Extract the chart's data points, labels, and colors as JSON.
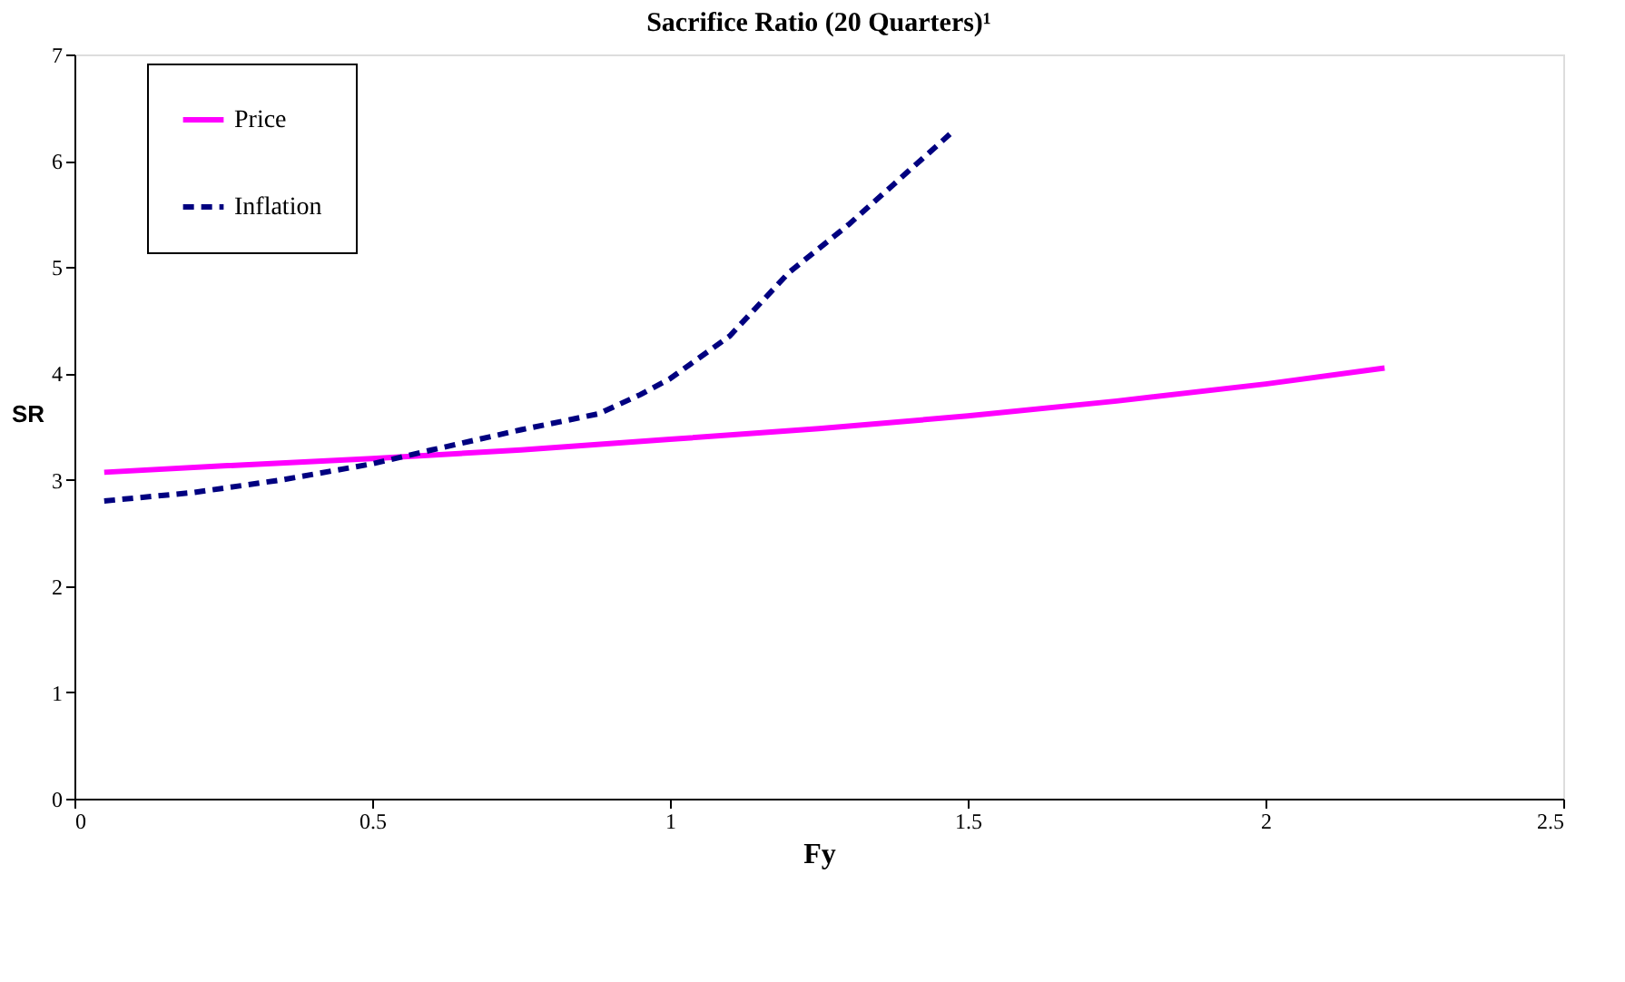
{
  "chart_data": {
    "type": "line",
    "title": "Sacrifice Ratio (20 Quarters)¹",
    "xlabel": "Fy",
    "ylabel": "SR",
    "xlim": [
      0,
      2.5
    ],
    "xticks": [
      0,
      0.5,
      1,
      1.5,
      2,
      2.5
    ],
    "ylim": [
      0,
      7
    ],
    "yticks": [
      0,
      1,
      2,
      3,
      4,
      5,
      6,
      7
    ],
    "grid": false,
    "legend": "top left",
    "marker": "none",
    "series": [
      {
        "name": "Price",
        "color": "#ff00ff",
        "line_style": "solid",
        "x": [
          0.05,
          0.25,
          0.5,
          0.75,
          1.0,
          1.25,
          1.5,
          1.75,
          2.0,
          2.2
        ],
        "values": [
          3.07,
          3.13,
          3.2,
          3.28,
          3.38,
          3.48,
          3.6,
          3.74,
          3.9,
          4.05
        ]
      },
      {
        "name": "Inflation",
        "color": "#000080",
        "line_style": "dashed",
        "x": [
          0.05,
          0.2,
          0.35,
          0.5,
          0.6,
          0.75,
          0.88,
          0.95,
          1.0,
          1.1,
          1.2,
          1.3,
          1.4,
          1.47
        ],
        "values": [
          2.8,
          2.88,
          3.0,
          3.15,
          3.28,
          3.47,
          3.62,
          3.8,
          3.95,
          4.35,
          4.95,
          5.4,
          5.9,
          6.25
        ]
      }
    ]
  }
}
